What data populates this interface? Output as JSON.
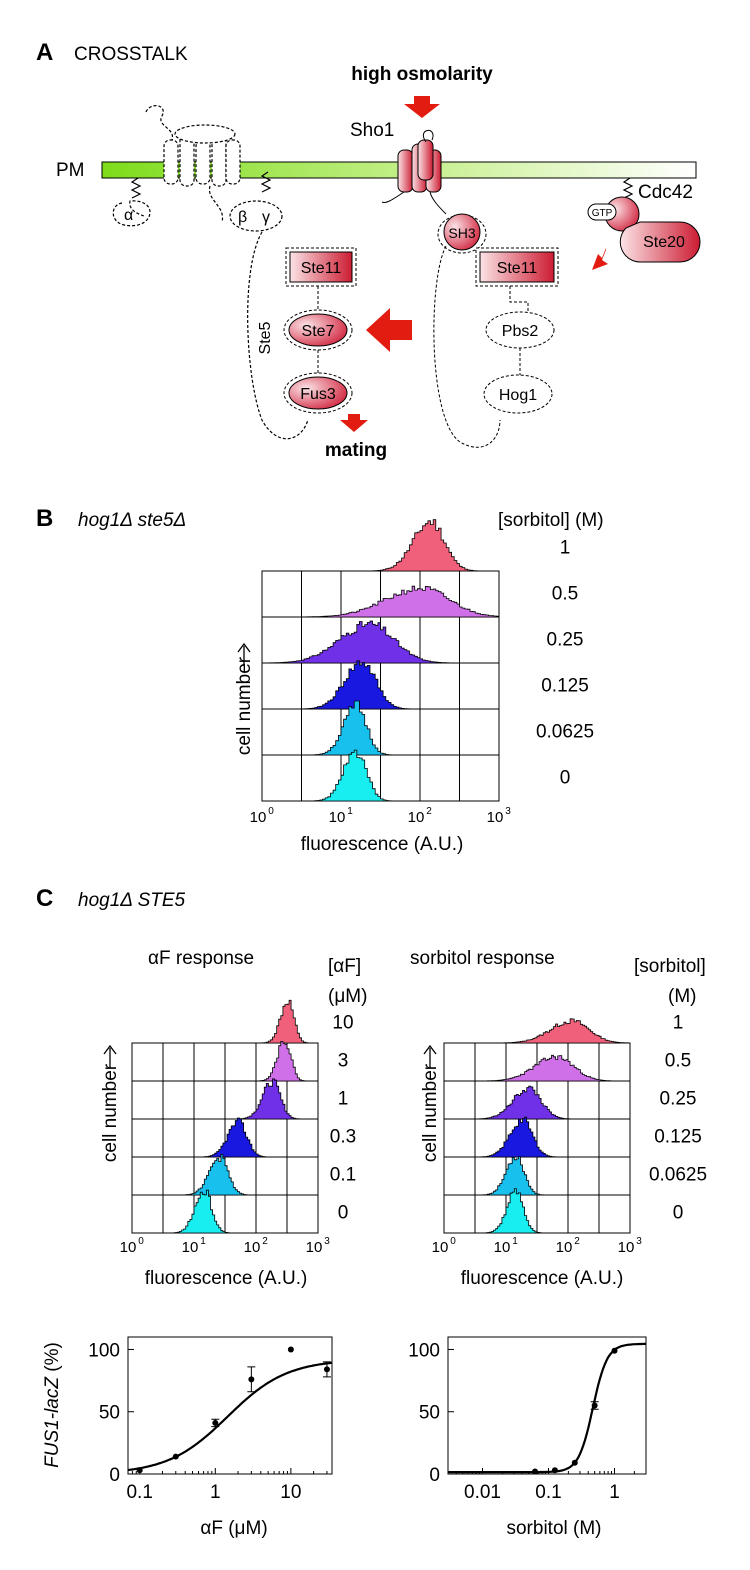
{
  "panelA": {
    "letter": "A",
    "title": "CROSSTALK",
    "stimulus": "high osmolarity",
    "membrane": "PM",
    "proteins": {
      "sho1": "Sho1",
      "cdc42": "Cdc42",
      "gtp": "GTP",
      "ste20": "Ste20",
      "sh3": "SH3",
      "ste11_left": "Ste11",
      "ste11_right": "Ste11",
      "ste7": "Ste7",
      "fus3": "Fus3",
      "ste5": "Ste5",
      "pbs2": "Pbs2",
      "hog1": "Hog1",
      "alpha": "α",
      "beta": "β",
      "gamma": "γ"
    },
    "output": "mating"
  },
  "panelB": {
    "letter": "B",
    "genotype": "hog1Δ ste5Δ",
    "conc_title": "[sorbitol] (M)",
    "concentrations": [
      "1",
      "0.5",
      "0.25",
      "0.125",
      "0.0625",
      "0"
    ],
    "colors": [
      "#f0607a",
      "#d070e8",
      "#7030e8",
      "#1818e0",
      "#18c0ee",
      "#18eef0"
    ],
    "ylabel": "cell number",
    "xlabel": "fluorescence (A.U.)",
    "xticks": [
      "10",
      "10",
      "10",
      "10"
    ],
    "xtick_exps": [
      "0",
      "1",
      "2",
      "3"
    ]
  },
  "panelC": {
    "letter": "C",
    "genotype": "hog1Δ STE5",
    "left_title": "αF response",
    "left_conc_title": [
      "[αF]",
      "(μM)"
    ],
    "left_concentrations": [
      "10",
      "3",
      "1",
      "0.3",
      "0.1",
      "0"
    ],
    "right_title": "sorbitol response",
    "right_conc_title": [
      "[sorbitol]",
      "(M)"
    ],
    "right_concentrations": [
      "1",
      "0.5",
      "0.25",
      "0.125",
      "0.0625",
      "0"
    ],
    "colors": [
      "#f0607a",
      "#d070e8",
      "#7030e8",
      "#1818e0",
      "#18c0ee",
      "#18eef0"
    ],
    "ylabel": "cell number",
    "xlabel": "fluorescence (A.U.)",
    "xticks": [
      "10",
      "10",
      "10",
      "10"
    ],
    "xtick_exps": [
      "0",
      "1",
      "2",
      "3"
    ]
  },
  "chart_data": [
    {
      "type": "scatter",
      "ylabel_italic": "FUS1-lacZ",
      "ylabel_suffix": " (%)",
      "xlabel": "αF (μM)",
      "x_scale": "log",
      "xlim": [
        0.07,
        35
      ],
      "ylim": [
        0,
        110
      ],
      "xticks": [
        "0.1",
        "1",
        "10"
      ],
      "yticks": [
        "0",
        "50",
        "100"
      ],
      "x": [
        0.1,
        0.3,
        1,
        3,
        10,
        30
      ],
      "y": [
        3,
        14,
        41,
        76,
        100,
        84
      ],
      "yerr": [
        0,
        0,
        3,
        10,
        0,
        6
      ]
    },
    {
      "type": "scatter",
      "xlabel": "sorbitol (M)",
      "x_scale": "log",
      "xlim": [
        0.003,
        3
      ],
      "ylim": [
        0,
        110
      ],
      "xticks": [
        "0.01",
        "0.1",
        "1"
      ],
      "yticks": [
        "0",
        "50",
        "100"
      ],
      "x": [
        0.0625,
        0.125,
        0.25,
        0.5,
        1
      ],
      "y": [
        2,
        3,
        9,
        55,
        99
      ],
      "yerr": [
        0,
        0,
        0,
        3,
        0
      ]
    }
  ]
}
